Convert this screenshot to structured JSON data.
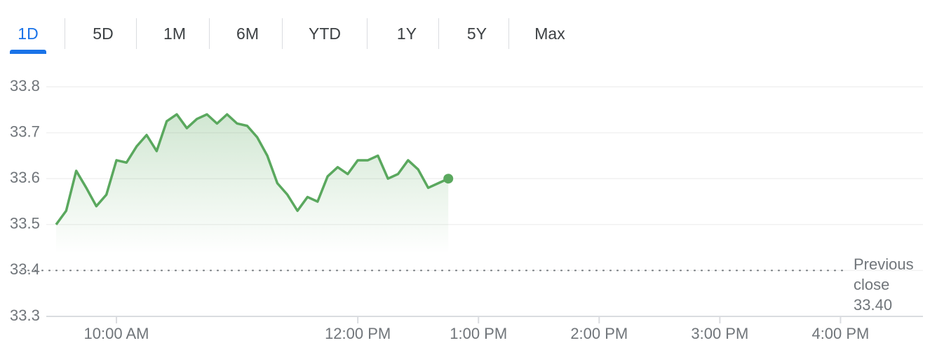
{
  "tabs": [
    "1D",
    "5D",
    "1M",
    "6M",
    "YTD",
    "1Y",
    "5Y",
    "Max"
  ],
  "chart_data": {
    "type": "line",
    "color": "#5aa85e",
    "x": [
      570,
      575,
      580,
      585,
      590,
      595,
      600,
      605,
      610,
      615,
      620,
      625,
      630,
      635,
      640,
      645,
      650,
      655,
      660,
      665,
      670,
      675,
      680,
      685,
      690,
      695,
      700,
      705,
      710,
      715,
      720,
      725,
      730,
      735,
      740,
      745,
      750,
      755,
      760,
      765
    ],
    "values": [
      33.5,
      33.53,
      33.617,
      33.58,
      33.54,
      33.565,
      33.64,
      33.635,
      33.67,
      33.695,
      33.66,
      33.725,
      33.74,
      33.71,
      33.73,
      33.74,
      33.72,
      33.74,
      33.72,
      33.715,
      33.69,
      33.65,
      33.59,
      33.565,
      33.53,
      33.56,
      33.55,
      33.605,
      33.625,
      33.61,
      33.64,
      33.64,
      33.65,
      33.6,
      33.61,
      33.64,
      33.62,
      33.58,
      33.59,
      33.6
    ],
    "xlim": [
      570,
      1001
    ],
    "xticks": [
      {
        "value": 600,
        "label": "10:00 AM"
      },
      {
        "value": 720,
        "label": "12:00 PM"
      },
      {
        "value": 780,
        "label": "1:00 PM"
      },
      {
        "value": 840,
        "label": "2:00 PM"
      },
      {
        "value": 900,
        "label": "3:00 PM"
      },
      {
        "value": 960,
        "label": "4:00 PM"
      }
    ],
    "ylim": [
      33.3,
      33.8
    ],
    "yticks": [
      33.3,
      33.4,
      33.5,
      33.6,
      33.7,
      33.8
    ],
    "grid": true,
    "reference_line": {
      "label": "Previous close",
      "value": 33.4,
      "value_label": "33.40"
    }
  }
}
